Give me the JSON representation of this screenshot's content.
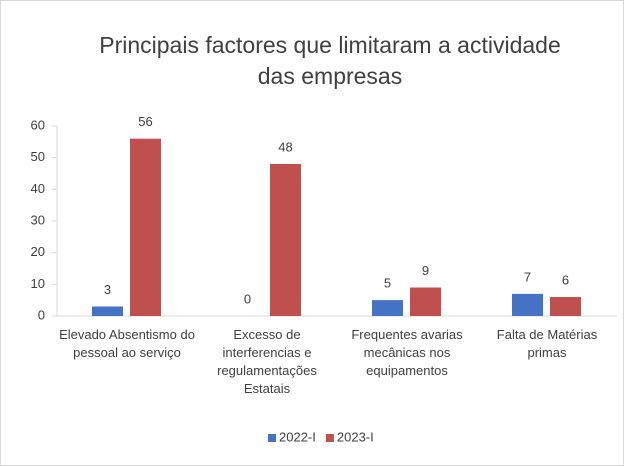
{
  "chart_data": {
    "type": "bar",
    "title": "Principais factores que limitaram a actividade das empresas",
    "categories": [
      "Elevado Absentismo do pessoal ao serviço",
      "Excesso de interferencias e regulamentações Estatais",
      "Frequentes avarias mecânicas nos equipamentos",
      "Falta de Matérias primas"
    ],
    "series": [
      {
        "name": "2022-I",
        "color": "#4472c4",
        "values": [
          3,
          0,
          5,
          7
        ]
      },
      {
        "name": "2023-I",
        "color": "#c0504d",
        "values": [
          56,
          48,
          9,
          6
        ]
      }
    ],
    "ylim": [
      0,
      60
    ],
    "yticks": [
      0,
      10,
      20,
      30,
      40,
      50,
      60
    ],
    "grid": false,
    "legend": "bottom"
  }
}
